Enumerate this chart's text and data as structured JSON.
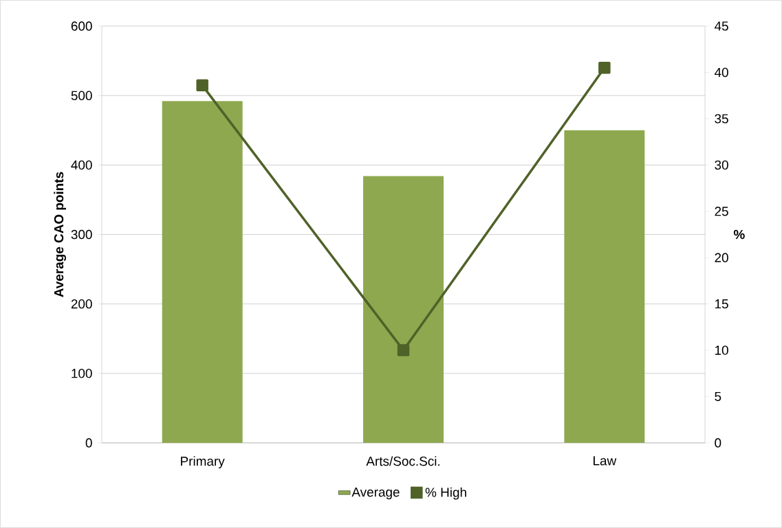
{
  "chart_data": {
    "type": "bar",
    "ylabel": "Average CAO points",
    "y2label": "%",
    "categories": [
      "Primary",
      "Arts/Soc.Sci.",
      "Law"
    ],
    "series": [
      {
        "name": "Average",
        "color": "#8ea84f",
        "values": [
          492,
          384,
          450
        ]
      },
      {
        "name": "% High",
        "type": "line",
        "axis": "y2",
        "color": "#4f6228",
        "values": [
          38.6,
          10,
          40.5
        ]
      }
    ],
    "ylim": [
      0,
      600
    ],
    "yticks": [
      0,
      100,
      200,
      300,
      400,
      500,
      600
    ],
    "y2lim": [
      0,
      45
    ],
    "y2ticks": [
      0,
      5,
      10,
      15,
      20,
      25,
      30,
      35,
      40,
      45
    ],
    "grid": "y",
    "legend": "bottom",
    "marker": "square",
    "line_style": "solid"
  }
}
